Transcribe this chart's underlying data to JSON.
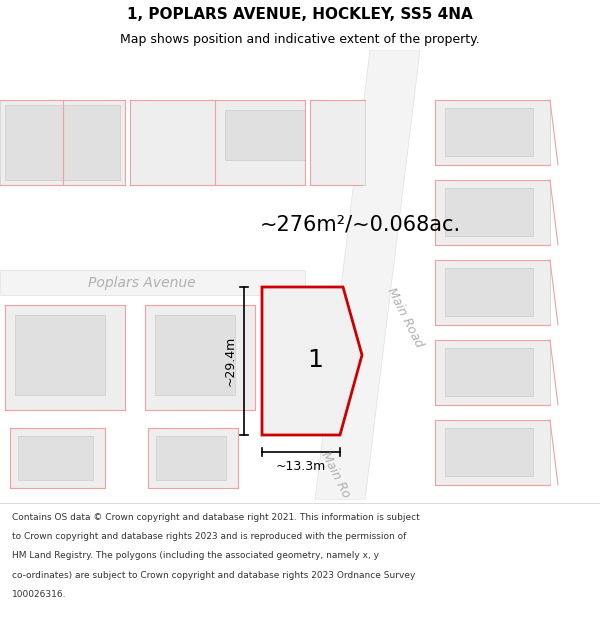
{
  "title": "1, POPLARS AVENUE, HOCKLEY, SS5 4NA",
  "subtitle": "Map shows position and indicative extent of the property.",
  "area_text": "~276m²/~0.068ac.",
  "dim_height": "~29.4m",
  "dim_width": "~13.3m",
  "plot_label": "1",
  "street_poplars": "Poplars Avenue",
  "street_main": "Main Road",
  "footer_lines": [
    "Contains OS data © Crown copyright and database right 2021. This information is subject",
    "to Crown copyright and database rights 2023 and is reproduced with the permission of",
    "HM Land Registry. The polygons (including the associated geometry, namely x, y",
    "co-ordinates) are subject to Crown copyright and database rights 2023 Ordnance Survey",
    "100026316."
  ],
  "title_fontsize": 11,
  "subtitle_fontsize": 9,
  "area_fontsize": 15,
  "plot_label_fontsize": 18,
  "street_fontsize": 10,
  "footer_fontsize": 6.5,
  "dim_fontsize": 9,
  "pink": "#f0a0a0",
  "red": "#cc0000",
  "light_gray": "#eeeeee",
  "medium_gray": "#e0e0e0",
  "dark_gray": "#cccccc",
  "street_color": "#b0b0b0",
  "bg_white": "#ffffff"
}
